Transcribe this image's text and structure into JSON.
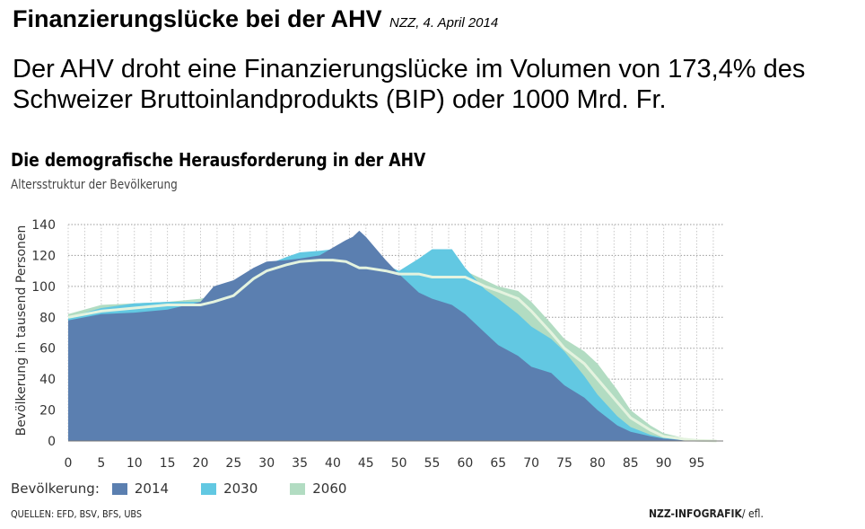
{
  "header": {
    "title": "Finanzierungslücke bei der AHV",
    "source": "NZZ, 4. April 2014"
  },
  "lead": "Der AHV droht eine Finanzierungslücke im Volumen von 173,4% des Schweizer Bruttoinlandprodukts (BIP) oder 1000 Mrd. Fr.",
  "footer": {
    "sources": "QUELLEN: EFD, BSV, BFS, UBS",
    "credit_bold": "NZZ-INFOGRAFIK",
    "credit_rest": "/ efl."
  },
  "legend": {
    "label": "Bevölkerung:"
  },
  "colors": {
    "2014": "#5b7fb0",
    "2030": "#62c8e2",
    "2060": "#b2dcc2",
    "line2060": "#e4f3df"
  },
  "chart_data": {
    "type": "area",
    "title": "Die demografische Herausforderung in der AHV",
    "subtitle": "Altersstruktur der Bevölkerung",
    "xlabel": "",
    "ylabel": "Bevölkerung in tausend Personen",
    "xlim": [
      0,
      99
    ],
    "ylim": [
      0,
      140
    ],
    "xticks": [
      0,
      5,
      10,
      15,
      20,
      25,
      30,
      35,
      40,
      45,
      50,
      55,
      60,
      65,
      70,
      75,
      80,
      85,
      90,
      95
    ],
    "yticks": [
      0,
      20,
      40,
      60,
      80,
      100,
      120,
      140
    ],
    "grid": true,
    "legend_position": "bottom-left",
    "x": [
      0,
      5,
      10,
      15,
      20,
      22,
      25,
      28,
      30,
      33,
      35,
      38,
      40,
      42,
      43,
      44,
      45,
      48,
      50,
      53,
      55,
      58,
      60,
      63,
      65,
      68,
      70,
      73,
      75,
      78,
      80,
      83,
      85,
      88,
      90,
      93,
      95,
      98
    ],
    "series": [
      {
        "name": "2014",
        "values": [
          78,
          82,
          83,
          85,
          90,
          100,
          104,
          112,
          116,
          117,
          118,
          120,
          125,
          130,
          132,
          136,
          132,
          117,
          108,
          96,
          92,
          88,
          82,
          70,
          62,
          55,
          48,
          44,
          36,
          28,
          20,
          10,
          6,
          3,
          1.5,
          0.5,
          0.2,
          0
        ]
      },
      {
        "name": "2030",
        "values": [
          80,
          86,
          89,
          90,
          90,
          92,
          100,
          110,
          114,
          119,
          122,
          123,
          124,
          122,
          121,
          120,
          118,
          114,
          110,
          118,
          124,
          124,
          112,
          98,
          92,
          82,
          74,
          66,
          58,
          42,
          30,
          16,
          9,
          4,
          2,
          0.8,
          0.3,
          0
        ]
      },
      {
        "name": "2060",
        "values": [
          82,
          88,
          89,
          90,
          92,
          94,
          102,
          108,
          112,
          116,
          118,
          119,
          119,
          118,
          117,
          116,
          114,
          112,
          110,
          111,
          111,
          110,
          110,
          104,
          100,
          97,
          90,
          76,
          66,
          58,
          50,
          33,
          20,
          10,
          5,
          2,
          0.8,
          0
        ]
      }
    ],
    "line_2060": [
      80,
      84,
      86,
      88,
      88,
      90,
      94,
      105,
      110,
      114,
      116,
      117,
      117,
      116,
      114,
      112,
      112,
      110,
      108,
      108,
      106,
      106,
      106,
      100,
      97,
      92,
      84,
      70,
      60,
      50,
      40,
      25,
      15,
      7,
      3,
      1.2,
      0.4,
      0
    ]
  }
}
